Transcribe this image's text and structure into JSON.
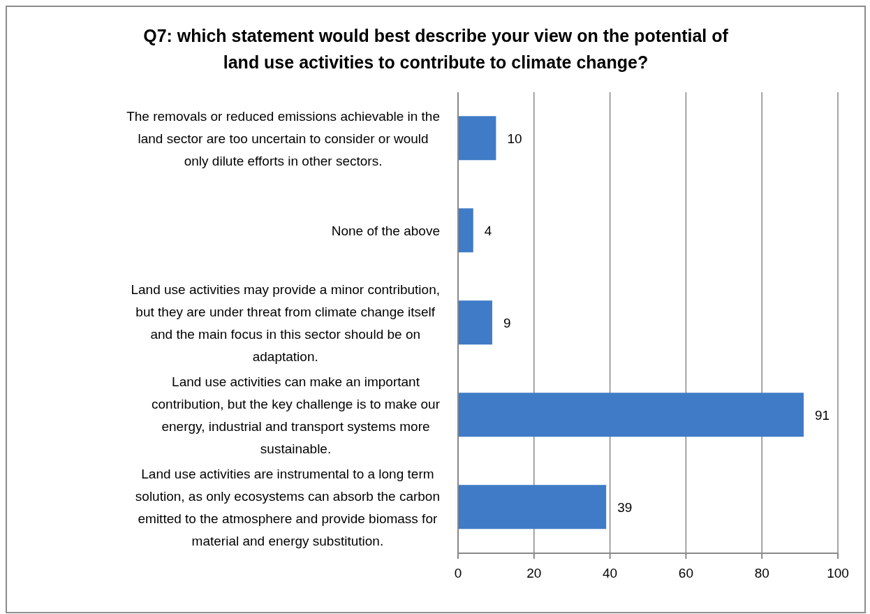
{
  "chart_data": {
    "type": "bar",
    "orientation": "horizontal",
    "title": "Q7: which statement would best describe your view on the potential of land use activities to contribute to climate  change?",
    "categories": [
      "The removals or reduced emissions achievable in the land sector are too uncertain to consider or would only dilute efforts in other sectors.",
      "None of the above",
      "Land use activities may provide a minor contribution, but they are under threat from climate change itself and the main focus in this sector should be on adaptation.",
      "Land use activities can make an important contribution, but the key challenge is to make our energy, industrial and transport systems more sustainable.",
      "Land use activities are instrumental to a long term solution, as only ecosystems can absorb the carbon emitted to the atmosphere and provide biomass for material and energy substitution."
    ],
    "values": [
      10,
      4,
      9,
      91,
      39
    ],
    "color": "#3f7bc6",
    "xlim": [
      0,
      100
    ],
    "xticks": [
      0,
      20,
      40,
      60,
      80,
      100
    ],
    "grid": "x",
    "data_labels": true
  }
}
